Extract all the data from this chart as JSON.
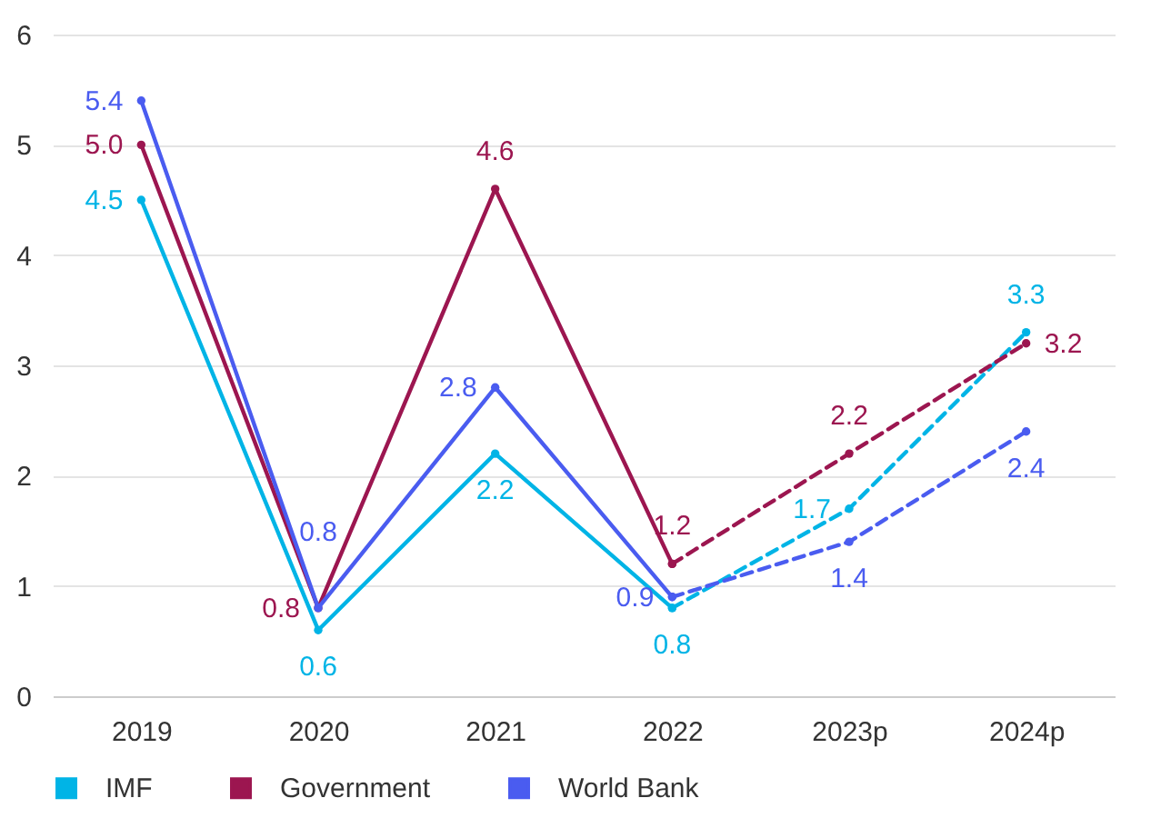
{
  "chart_data": {
    "type": "line",
    "categories": [
      "2019",
      "2020",
      "2021",
      "2022",
      "2023p",
      "2024p"
    ],
    "series": [
      {
        "name": "IMF",
        "color": "#00b4e6",
        "line_style": "solid",
        "values": [
          4.5,
          0.6,
          2.2,
          0.8,
          null,
          null
        ],
        "value_labels": [
          "4.5",
          "0.6",
          "2.2",
          "0.8",
          null,
          null
        ]
      },
      {
        "name": "Government",
        "color": "#9c1650",
        "line_style": "solid",
        "values": [
          5.0,
          0.8,
          4.6,
          1.2,
          null,
          null
        ],
        "value_labels": [
          "5.0",
          "0.8",
          "4.6",
          "1.2",
          null,
          null
        ]
      },
      {
        "name": "World Bank",
        "color": "#4a5cf0",
        "line_style": "solid",
        "values": [
          5.4,
          0.8,
          2.8,
          0.9,
          null,
          null
        ],
        "value_labels": [
          "5.4",
          "0.8",
          "2.8",
          "0.9",
          null,
          null
        ]
      },
      {
        "color": "#00b4e6",
        "line_style": "dashed",
        "values": [
          null,
          null,
          null,
          0.8,
          1.7,
          3.3
        ],
        "value_labels": [
          null,
          null,
          null,
          null,
          "1.7",
          "3.3"
        ]
      },
      {
        "color": "#9c1650",
        "line_style": "dashed",
        "values": [
          null,
          null,
          null,
          1.2,
          2.2,
          3.2
        ],
        "value_labels": [
          null,
          null,
          null,
          null,
          "2.2",
          "3.2"
        ]
      },
      {
        "color": "#4a5cf0",
        "line_style": "dashed",
        "values": [
          null,
          null,
          null,
          0.9,
          1.4,
          2.4
        ],
        "value_labels": [
          null,
          null,
          null,
          null,
          "1.4",
          "2.4"
        ]
      }
    ],
    "ylim": [
      0,
      6
    ],
    "yticks": [
      0,
      1,
      2,
      3,
      4,
      5,
      6
    ],
    "grid": "y",
    "legend": "bottom left",
    "marker": "circle"
  }
}
